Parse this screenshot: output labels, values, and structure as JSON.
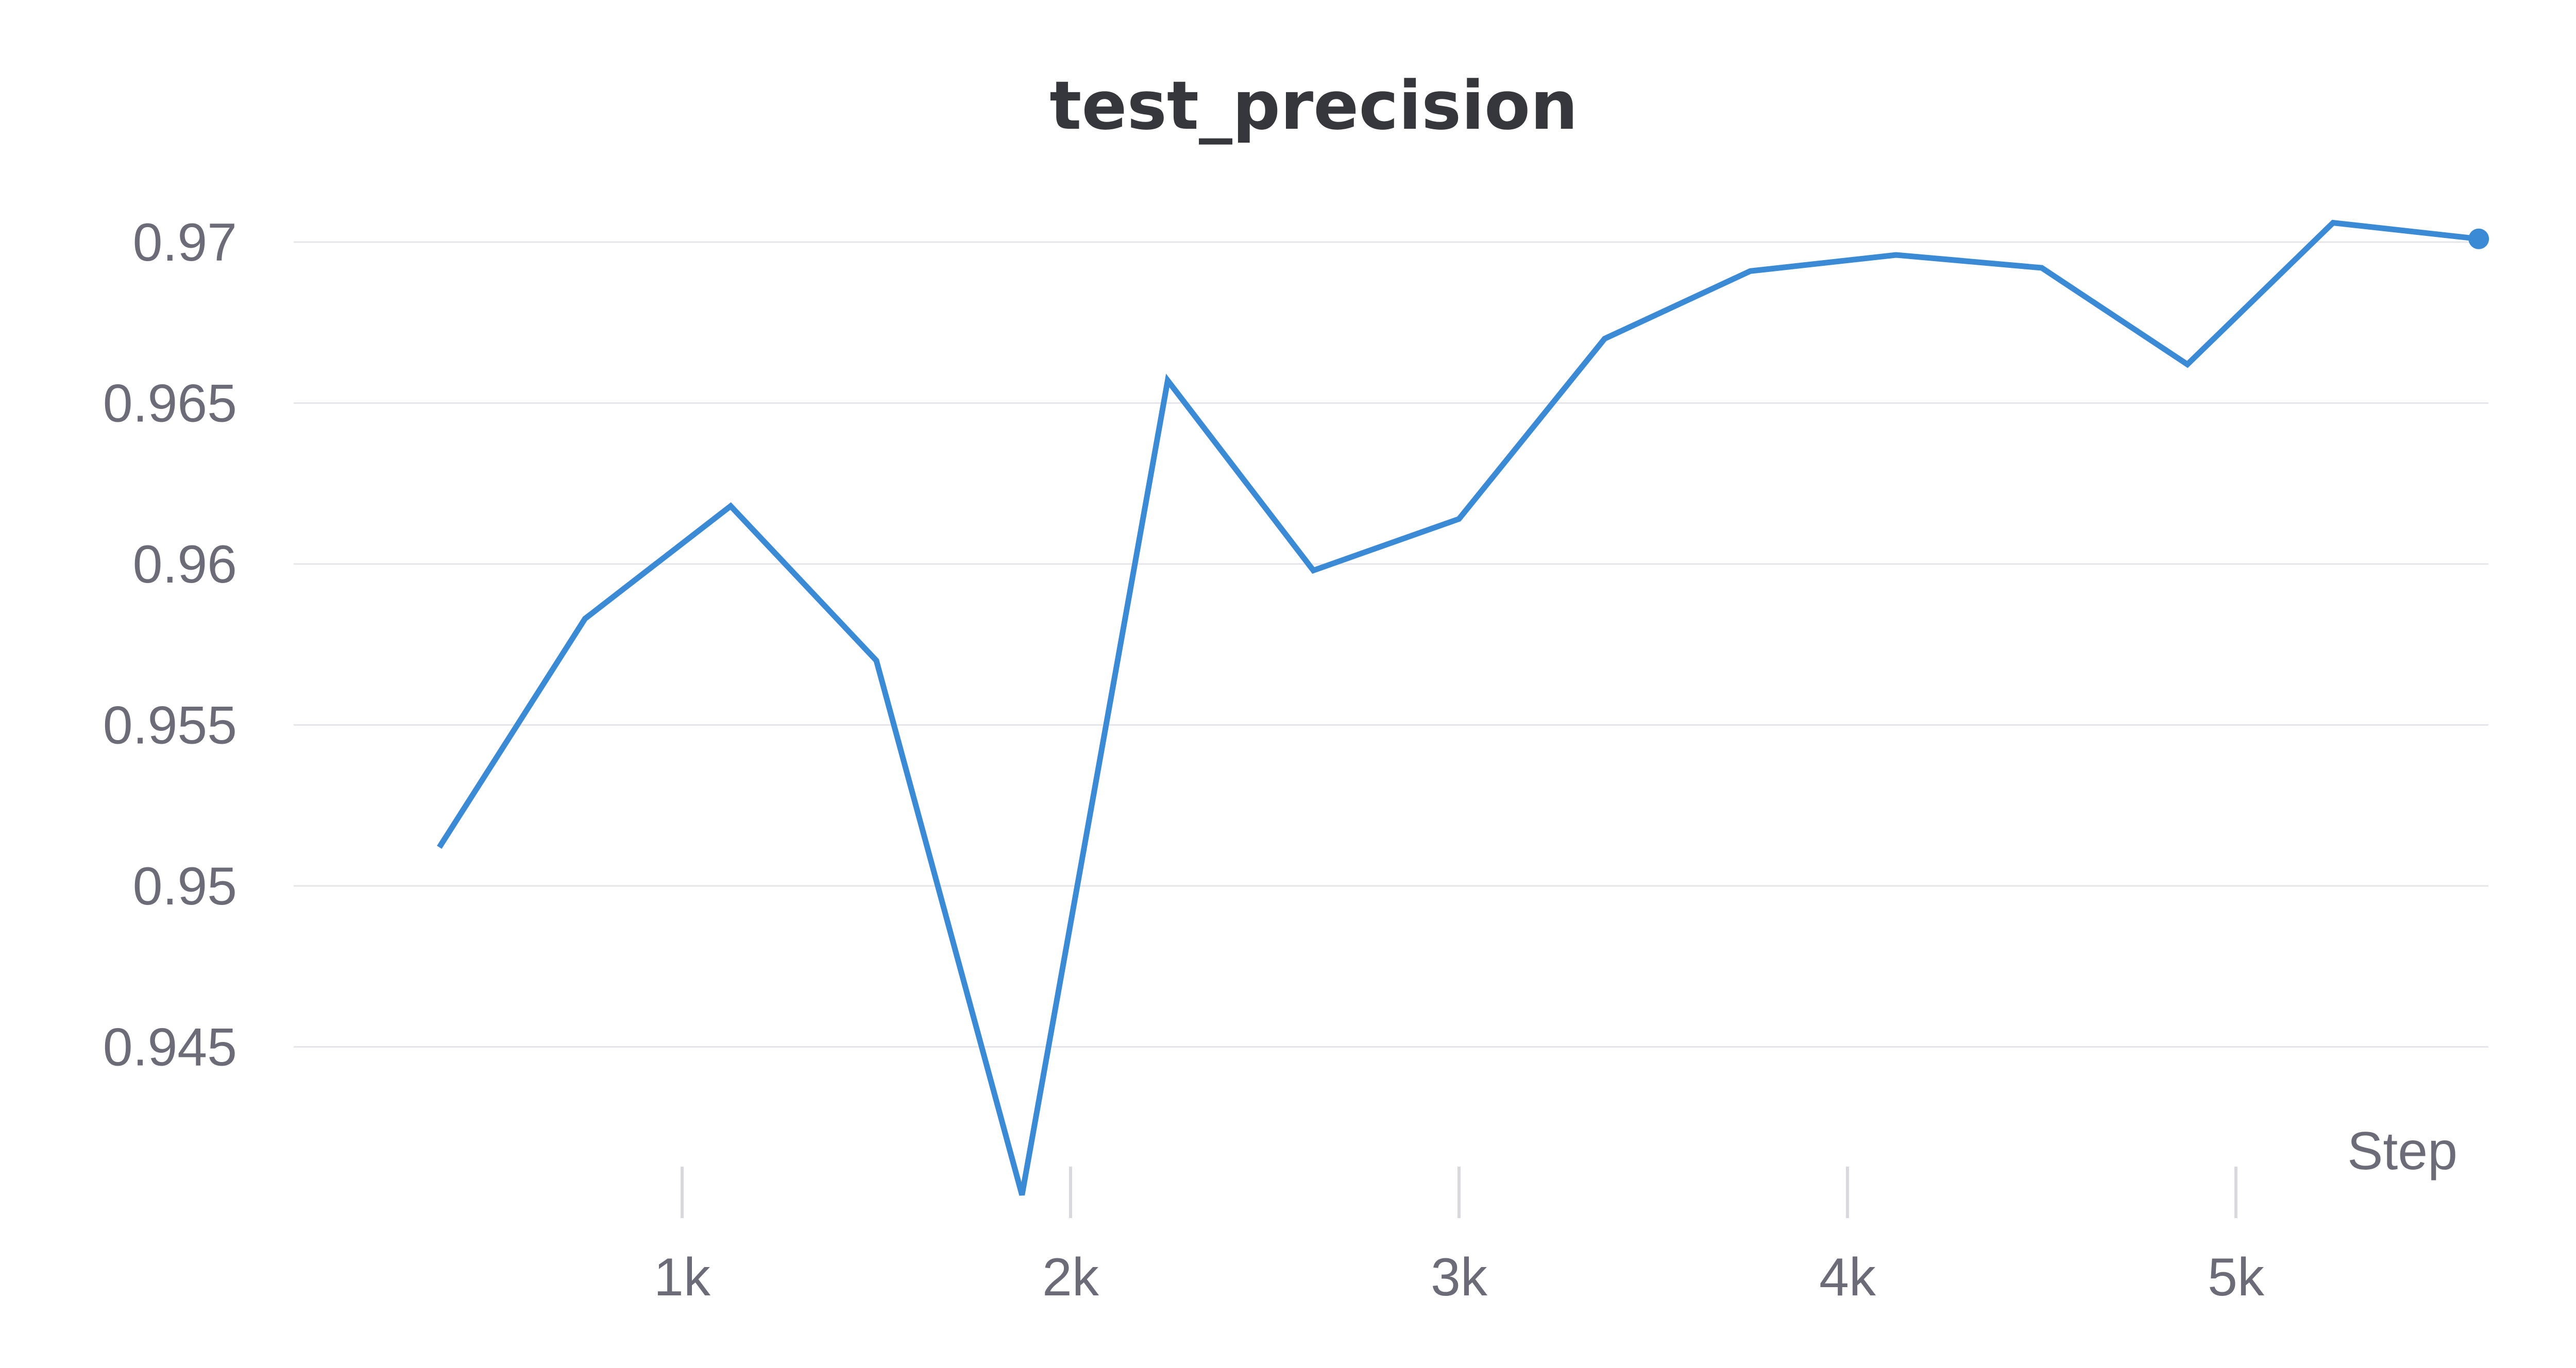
{
  "chart_data": {
    "type": "line",
    "title": "test_precision",
    "xlabel": "Step",
    "ylabel": "",
    "xlim": [
      0,
      5650
    ],
    "ylim": [
      0.9404,
      0.9724
    ],
    "x_ticks": [
      1000,
      2000,
      3000,
      4000,
      5000
    ],
    "x_tick_labels": [
      "1k",
      "2k",
      "3k",
      "4k",
      "5k"
    ],
    "y_ticks": [
      0.945,
      0.95,
      0.955,
      0.96,
      0.965,
      0.97
    ],
    "y_tick_labels": [
      "0.945",
      "0.95",
      "0.955",
      "0.96",
      "0.965",
      "0.97"
    ],
    "grid": true,
    "series": [
      {
        "color": "#3a8ad6",
        "x": [
          375,
          750,
          1125,
          1500,
          1875,
          2250,
          2625,
          3000,
          3375,
          3750,
          4125,
          4500,
          4875,
          5250,
          5625
        ],
        "y": [
          0.9512,
          0.9583,
          0.9618,
          0.957,
          0.9404,
          0.9657,
          0.9598,
          0.9614,
          0.967,
          0.9691,
          0.9696,
          0.9692,
          0.9662,
          0.9706,
          0.9701
        ],
        "end_marker": true
      }
    ]
  }
}
